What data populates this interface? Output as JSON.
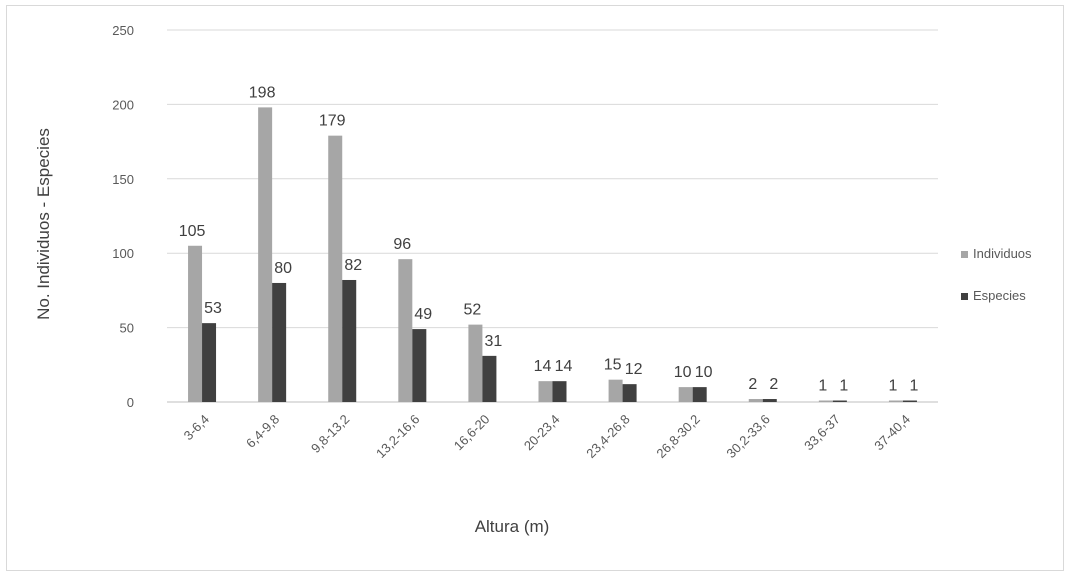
{
  "chart_data": {
    "type": "bar",
    "categories": [
      "3-6,4",
      "6,4-9,8",
      "9,8-13,2",
      "13,2-16,6",
      "16,6-20",
      "20-23,4",
      "23,4-26,8",
      "26,8-30,2",
      "30,2-33,6",
      "33,6-37",
      "37-40,4"
    ],
    "series": [
      {
        "name": "Individuos",
        "values": [
          105,
          198,
          179,
          96,
          52,
          14,
          15,
          10,
          2,
          1,
          1
        ],
        "color": "#a6a6a6"
      },
      {
        "name": "Especies",
        "values": [
          53,
          80,
          82,
          49,
          31,
          14,
          12,
          10,
          2,
          1,
          1
        ],
        "color": "#404040"
      }
    ],
    "xlabel": "Altura (m)",
    "ylabel": "No. Individuos - Especies",
    "ylim": [
      0,
      250
    ],
    "yticks": [
      0,
      50,
      100,
      150,
      200,
      250
    ],
    "grid": true,
    "legend_position": "right"
  }
}
